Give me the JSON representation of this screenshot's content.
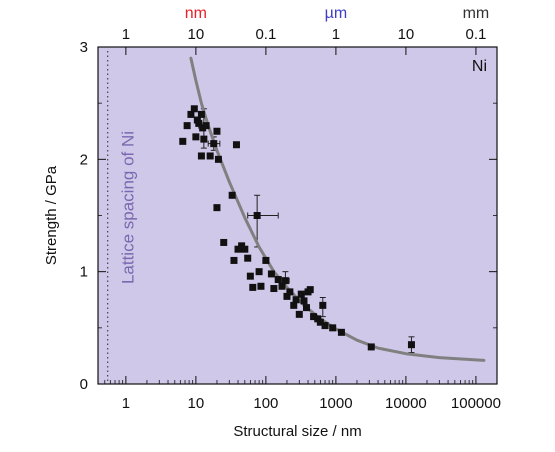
{
  "chart_data": {
    "type": "scatter",
    "title": "",
    "xlabel": "Structural size / nm",
    "ylabel": "Strength / GPa",
    "xscale": "log",
    "xlim": [
      0.4,
      200000
    ],
    "ylim": [
      0,
      3
    ],
    "x_ticks": [
      {
        "value": 1,
        "label": "1"
      },
      {
        "value": 10,
        "label": "10"
      },
      {
        "value": 100,
        "label": "100"
      },
      {
        "value": 1000,
        "label": "1000"
      },
      {
        "value": 10000,
        "label": "10000"
      },
      {
        "value": 100000,
        "label": "100000"
      }
    ],
    "y_ticks": [
      {
        "value": 0,
        "label": "0"
      },
      {
        "value": 1,
        "label": "1"
      },
      {
        "value": 2,
        "label": "2"
      },
      {
        "value": 3,
        "label": "3"
      }
    ],
    "top_ticks": [
      {
        "value": 1,
        "label": "1"
      },
      {
        "value": 10,
        "label": "10"
      },
      {
        "value": 100,
        "label": "0.1"
      },
      {
        "value": 1000,
        "label": "1"
      },
      {
        "value": 10000,
        "label": "10"
      },
      {
        "value": 100000,
        "label": "0.1"
      }
    ],
    "top_units": [
      {
        "value": 10,
        "label": "nm",
        "color": "#e8202a"
      },
      {
        "value": 1000,
        "label": "µm",
        "color": "#3d3dc8"
      },
      {
        "value": 100000,
        "label": "mm",
        "color": "#333333"
      }
    ],
    "annotations": [
      {
        "text": "Ni",
        "position": "top-right"
      },
      {
        "text": "Lattice spacing of Ni",
        "x": 0.55,
        "orientation": "vertical",
        "color": "#7a68b0"
      }
    ],
    "background_color": "#cfc8e8",
    "marker_color": "#111111",
    "curve_color": "#808080",
    "curve": {
      "name": "",
      "x": [
        8.5,
        10,
        12,
        15,
        20,
        30,
        50,
        80,
        130,
        200,
        350,
        600,
        1000,
        2000,
        4000,
        10000,
        30000,
        130000
      ],
      "y": [
        2.9,
        2.7,
        2.5,
        2.3,
        2.08,
        1.8,
        1.48,
        1.22,
        1.0,
        0.86,
        0.7,
        0.58,
        0.49,
        0.39,
        0.32,
        0.27,
        0.235,
        0.21
      ]
    },
    "points": [
      {
        "x": 6.5,
        "y": 2.16
      },
      {
        "x": 7.5,
        "y": 2.3
      },
      {
        "x": 8.5,
        "y": 2.4
      },
      {
        "x": 9.5,
        "y": 2.45
      },
      {
        "x": 10,
        "y": 2.2
      },
      {
        "x": 10.5,
        "y": 2.35
      },
      {
        "x": 11,
        "y": 2.32
      },
      {
        "x": 12,
        "y": 2.4
      },
      {
        "x": 12.5,
        "y": 2.28
      },
      {
        "x": 13,
        "y": 2.18
      },
      {
        "x": 14,
        "y": 2.3
      },
      {
        "x": 12,
        "y": 2.03
      },
      {
        "x": 16,
        "y": 2.03
      },
      {
        "x": 18,
        "y": 2.14
      },
      {
        "x": 20,
        "y": 2.25
      },
      {
        "x": 21,
        "y": 2.0
      },
      {
        "x": 33,
        "y": 1.68
      },
      {
        "x": 38,
        "y": 2.13
      },
      {
        "x": 20,
        "y": 1.57
      },
      {
        "x": 25,
        "y": 1.26
      },
      {
        "x": 35,
        "y": 1.1
      },
      {
        "x": 40,
        "y": 1.2
      },
      {
        "x": 45,
        "y": 1.23
      },
      {
        "x": 50,
        "y": 1.2
      },
      {
        "x": 55,
        "y": 1.12
      },
      {
        "x": 60,
        "y": 0.96
      },
      {
        "x": 65,
        "y": 0.86
      },
      {
        "x": 75,
        "y": 1.5
      },
      {
        "x": 80,
        "y": 1.0
      },
      {
        "x": 85,
        "y": 0.87
      },
      {
        "x": 100,
        "y": 1.1
      },
      {
        "x": 120,
        "y": 0.98
      },
      {
        "x": 130,
        "y": 0.85
      },
      {
        "x": 150,
        "y": 0.93
      },
      {
        "x": 170,
        "y": 0.87
      },
      {
        "x": 190,
        "y": 0.92
      },
      {
        "x": 200,
        "y": 0.78
      },
      {
        "x": 220,
        "y": 0.82
      },
      {
        "x": 250,
        "y": 0.7
      },
      {
        "x": 270,
        "y": 0.75
      },
      {
        "x": 300,
        "y": 0.62
      },
      {
        "x": 320,
        "y": 0.8
      },
      {
        "x": 350,
        "y": 0.74
      },
      {
        "x": 380,
        "y": 0.68
      },
      {
        "x": 400,
        "y": 0.82
      },
      {
        "x": 430,
        "y": 0.84
      },
      {
        "x": 480,
        "y": 0.6
      },
      {
        "x": 550,
        "y": 0.58
      },
      {
        "x": 600,
        "y": 0.55
      },
      {
        "x": 650,
        "y": 0.7
      },
      {
        "x": 700,
        "y": 0.52
      },
      {
        "x": 900,
        "y": 0.5
      },
      {
        "x": 1200,
        "y": 0.46
      },
      {
        "x": 3200,
        "y": 0.33
      },
      {
        "x": 12000,
        "y": 0.35
      }
    ],
    "error_bars": [
      {
        "x": 13,
        "y": 2.3,
        "x_err": [
          11,
          15
        ],
        "y_err": [
          2.1,
          2.45
        ]
      },
      {
        "x": 18,
        "y": 2.14,
        "x_err": [
          15,
          22
        ],
        "y_err": [
          2.08,
          2.2
        ]
      },
      {
        "x": 75,
        "y": 1.5,
        "x_err": [
          55,
          150
        ],
        "y_err": [
          1.22,
          1.68
        ]
      },
      {
        "x": 190,
        "y": 0.92,
        "x_err": [
          170,
          215
        ],
        "y_err": [
          0.86,
          1.0
        ]
      },
      {
        "x": 650,
        "y": 0.7,
        "x_err": [
          600,
          700
        ],
        "y_err": [
          0.6,
          0.77
        ]
      },
      {
        "x": 12000,
        "y": 0.35,
        "x_err": [
          11000,
          13000
        ],
        "y_err": [
          0.28,
          0.42
        ]
      }
    ]
  }
}
